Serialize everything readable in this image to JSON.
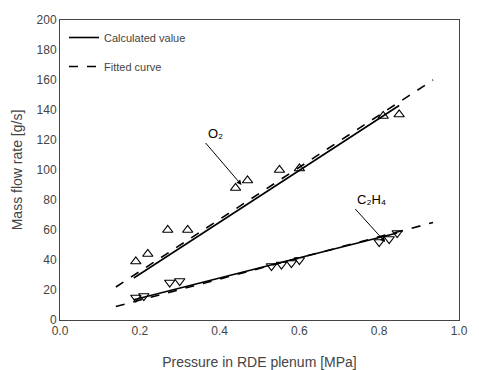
{
  "chart_data": {
    "type": "line",
    "xlabel": "Pressure in RDE plenum [MPa]",
    "ylabel": "Mass flow rate [g/s]",
    "xlim": [
      0.0,
      1.0
    ],
    "ylim": [
      0,
      200
    ],
    "xticks": [
      {
        "value": 0.0,
        "label": "0.0"
      },
      0.2,
      0.4,
      0.6,
      0.8,
      {
        "value": 1.0,
        "label": "1.0"
      }
    ],
    "yticks": [
      0,
      20,
      40,
      60,
      80,
      100,
      120,
      140,
      160,
      180,
      200
    ],
    "grid": false,
    "legend": "upper left",
    "series": [
      {
        "name": "Calculated value",
        "type": "line",
        "line_style": "solid",
        "color": "#000000",
        "x": [
          0.185,
          0.85
        ],
        "values": [
          28,
          143
        ]
      },
      {
        "name": "Fitted curve",
        "type": "line",
        "line_style": "dashed",
        "color": "#000000",
        "x": [
          0.14,
          0.935
        ],
        "values": [
          22,
          160
        ]
      },
      {
        "type": "scatter",
        "marker": "triangle-up",
        "color": "#000000",
        "x": [
          0.19,
          0.22,
          0.27,
          0.32,
          0.44,
          0.47,
          0.55,
          0.6,
          0.81,
          0.85
        ],
        "values": [
          39,
          44,
          60,
          60,
          88,
          93,
          100,
          101,
          136,
          137
        ]
      },
      {
        "name": "Calculated value",
        "type": "line",
        "line_style": "solid",
        "color": "#000000",
        "x": [
          0.185,
          0.845
        ],
        "values": [
          13.5,
          58
        ]
      },
      {
        "name": "Fitted curve",
        "type": "line",
        "line_style": "dashed",
        "color": "#000000",
        "x": [
          0.14,
          0.935
        ],
        "values": [
          9,
          65
        ]
      },
      {
        "type": "scatter",
        "marker": "triangle-down",
        "color": "#000000",
        "x": [
          0.19,
          0.21,
          0.275,
          0.3,
          0.53,
          0.555,
          0.58,
          0.6,
          0.8,
          0.825,
          0.845
        ],
        "values": [
          15,
          16,
          25,
          26,
          36,
          37,
          38,
          40,
          52,
          54,
          58
        ]
      }
    ],
    "annotations": [
      {
        "text": "O₂",
        "x": 0.455,
        "y": 90,
        "text_x": 0.365,
        "text_y": 118,
        "color": "#000000"
      },
      {
        "text": "C₂H₄",
        "x": 0.815,
        "y": 52,
        "text_x": 0.74,
        "text_y": 74,
        "color": "#000000"
      }
    ]
  }
}
